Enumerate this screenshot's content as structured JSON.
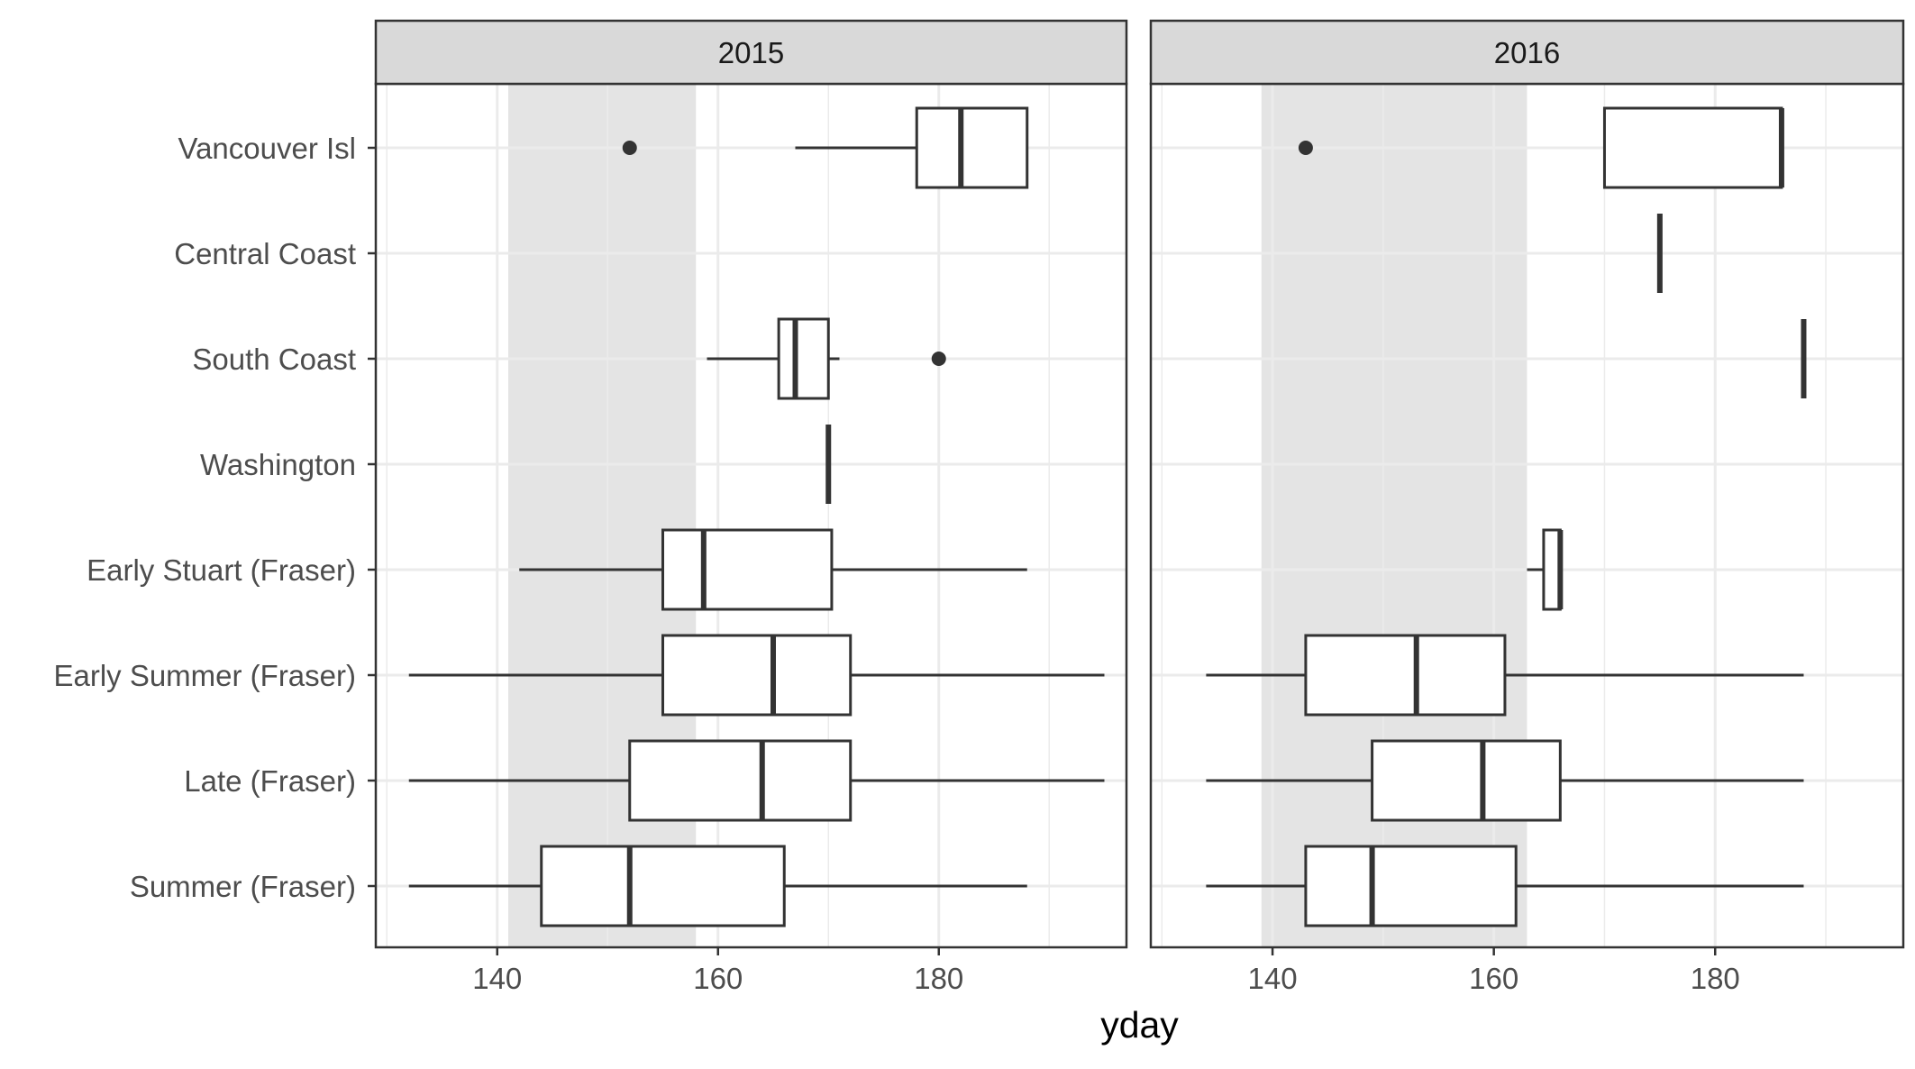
{
  "chart_data": {
    "type": "boxplot",
    "orientation": "horizontal",
    "xlabel": "yday",
    "ylabel": "",
    "xlim": [
      129,
      197
    ],
    "x_ticks": [
      140,
      160,
      180
    ],
    "categories": [
      "Vancouver Isl",
      "Central Coast",
      "South Coast",
      "Washington",
      "Early Stuart (Fraser)",
      "Early Summer (Fraser)",
      "Late (Fraser)",
      "Summer (Fraser)"
    ],
    "grid": "on",
    "theme": "bw",
    "colors": {
      "box_line": "#333333",
      "box_fill": "#ffffff",
      "shaded_band": "#d9d9d9",
      "grid": "#ebebeb",
      "strip_fill": "#d9d9d9",
      "panel_border": "#333333"
    },
    "panels": [
      {
        "label": "2015",
        "shaded_range": [
          141,
          158
        ],
        "boxes": [
          {
            "category": "Vancouver Isl",
            "min": 167,
            "q1": 178,
            "median": 182,
            "q3": 188,
            "max": 188,
            "outliers": [
              152
            ]
          },
          {
            "category": "South Coast",
            "min": 159,
            "q1": 165.5,
            "median": 167,
            "q3": 170,
            "max": 171,
            "outliers": [
              180
            ]
          },
          {
            "category": "Washington",
            "min": 170,
            "q1": 170,
            "median": 170,
            "q3": 170,
            "max": 170,
            "outliers": []
          },
          {
            "category": "Early Stuart (Fraser)",
            "min": 142,
            "q1": 155,
            "median": 158.7,
            "q3": 170.3,
            "max": 188,
            "outliers": []
          },
          {
            "category": "Early Summer (Fraser)",
            "min": 132,
            "q1": 155,
            "median": 165,
            "q3": 172,
            "max": 195,
            "outliers": []
          },
          {
            "category": "Late (Fraser)",
            "min": 132,
            "q1": 152,
            "median": 164,
            "q3": 172,
            "max": 195,
            "outliers": []
          },
          {
            "category": "Summer (Fraser)",
            "min": 132,
            "q1": 144,
            "median": 152,
            "q3": 166,
            "max": 188,
            "outliers": []
          }
        ]
      },
      {
        "label": "2016",
        "shaded_range": [
          139,
          163
        ],
        "boxes": [
          {
            "category": "Vancouver Isl",
            "min": 170,
            "q1": 170,
            "median": 186,
            "q3": 186,
            "max": 186,
            "outliers": [
              143
            ]
          },
          {
            "category": "Central Coast",
            "min": 175,
            "q1": 175,
            "median": 175,
            "q3": 175,
            "max": 175,
            "outliers": []
          },
          {
            "category": "South Coast",
            "min": 188,
            "q1": 188,
            "median": 188,
            "q3": 188,
            "max": 188,
            "outliers": []
          },
          {
            "category": "Early Stuart (Fraser)",
            "min": 163,
            "q1": 164.5,
            "median": 166,
            "q3": 166,
            "max": 166,
            "outliers": []
          },
          {
            "category": "Early Summer (Fraser)",
            "min": 134,
            "q1": 143,
            "median": 153,
            "q3": 161,
            "max": 188,
            "outliers": []
          },
          {
            "category": "Late (Fraser)",
            "min": 134,
            "q1": 149,
            "median": 159,
            "q3": 166,
            "max": 188,
            "outliers": []
          },
          {
            "category": "Summer (Fraser)",
            "min": 134,
            "q1": 143,
            "median": 149,
            "q3": 162,
            "max": 188,
            "outliers": []
          }
        ]
      }
    ]
  }
}
